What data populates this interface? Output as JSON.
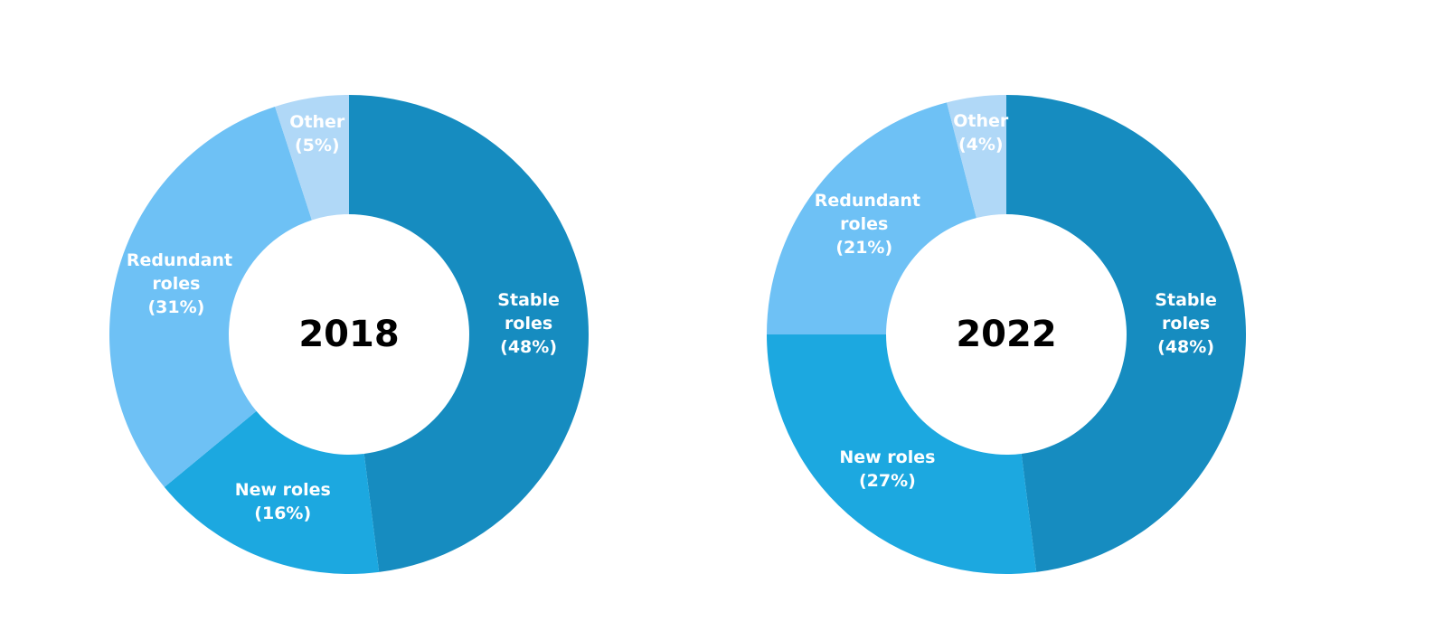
{
  "chart_data": [
    {
      "type": "donut",
      "title": "2018",
      "categories": [
        "Stable roles",
        "New roles",
        "Redundant roles",
        "Other"
      ],
      "values": [
        48,
        16,
        31,
        5
      ],
      "value_labels": [
        "(48%)",
        "(16%)",
        "(31%)",
        "(5%)"
      ],
      "colors": [
        "#168cc0",
        "#1ca8e0",
        "#6ec1f5",
        "#b0d8f7"
      ]
    },
    {
      "type": "donut",
      "title": "2022",
      "categories": [
        "Stable roles",
        "New roles",
        "Redundant roles",
        "Other"
      ],
      "values": [
        48,
        27,
        21,
        4
      ],
      "value_labels": [
        "(48%)",
        "(27%)",
        "(21%)",
        "(4%)"
      ],
      "colors": [
        "#168cc0",
        "#1ca8e0",
        "#6ec1f5",
        "#b0d8f7"
      ]
    }
  ]
}
